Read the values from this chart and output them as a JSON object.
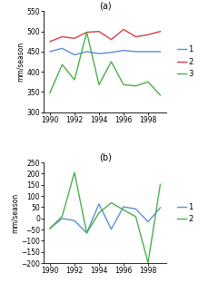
{
  "years_a": [
    1990,
    1991,
    1992,
    1993,
    1994,
    1995,
    1996,
    1997,
    1998,
    1999
  ],
  "line1_a": [
    450,
    458,
    442,
    450,
    445,
    448,
    453,
    450,
    450,
    450
  ],
  "line2_a": [
    475,
    487,
    483,
    498,
    500,
    480,
    505,
    487,
    492,
    500
  ],
  "line3_a": [
    348,
    418,
    380,
    498,
    368,
    425,
    368,
    365,
    375,
    342
  ],
  "years_b": [
    1990,
    1991,
    1992,
    1993,
    1994,
    1995,
    1996,
    1997,
    1998,
    1999
  ],
  "line1_b": [
    -45,
    0,
    -10,
    -65,
    65,
    -48,
    52,
    42,
    -15,
    48
  ],
  "line2_b": [
    -45,
    10,
    205,
    -65,
    25,
    70,
    38,
    8,
    -198,
    152
  ],
  "color1": "#5b8fd4",
  "color2": "#d44040",
  "color3": "#4aaf4a",
  "title_a": "(a)",
  "title_b": "(b)",
  "ylabel": "mm/season",
  "ylim_a": [
    300,
    550
  ],
  "ylim_b": [
    -200,
    250
  ],
  "yticks_a": [
    300,
    350,
    400,
    450,
    500,
    550
  ],
  "yticks_b": [
    -200,
    -150,
    -100,
    -50,
    0,
    50,
    100,
    150,
    200,
    250
  ],
  "xticks": [
    1990,
    1992,
    1994,
    1996,
    1998
  ],
  "legend_a": [
    "1",
    "2",
    "3"
  ],
  "legend_b": [
    "1",
    "2"
  ],
  "bg_color": "#ffffff",
  "linewidth": 1.0
}
